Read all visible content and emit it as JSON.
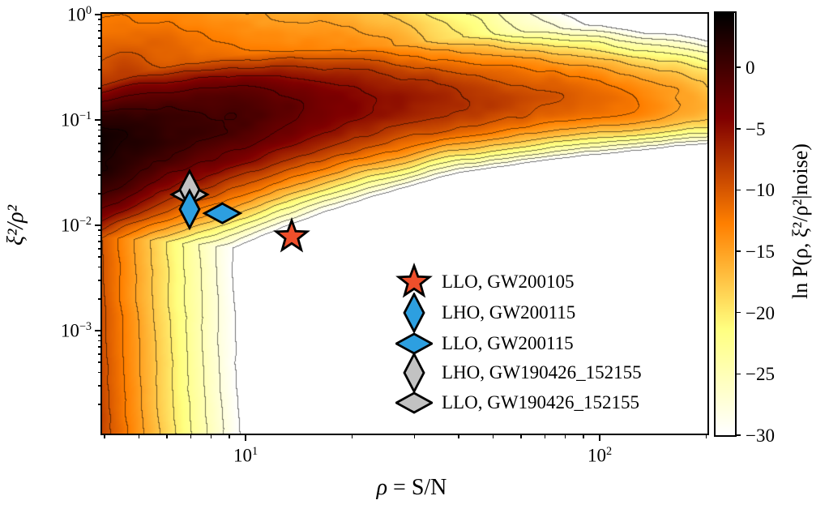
{
  "figure": {
    "xlabel": {
      "symbol": "ρ",
      "rest": " = S/N"
    },
    "ylabel": "ξ²/ρ²",
    "x_axis": {
      "scale": "log",
      "range": [
        3.92,
        202
      ],
      "major_ticks": [
        {
          "base": "10",
          "exp": "1",
          "value": 10
        },
        {
          "base": "10",
          "exp": "2",
          "value": 100
        }
      ],
      "minor_ticks": [
        4,
        5,
        6,
        7,
        8,
        9,
        20,
        30,
        40,
        50,
        60,
        70,
        80,
        90,
        200
      ]
    },
    "y_axis": {
      "scale": "log",
      "range": [
        0.000105,
        1.035
      ],
      "major_ticks": [
        {
          "base": "10",
          "exp": "0",
          "value": 1
        },
        {
          "base": "10",
          "exp": "−1",
          "value": 0.1
        },
        {
          "base": "10",
          "exp": "−2",
          "value": 0.01
        },
        {
          "base": "10",
          "exp": "−3",
          "value": 0.001
        }
      ],
      "minor_ticks": [
        0.9,
        0.8,
        0.7,
        0.6,
        0.5,
        0.4,
        0.3,
        0.2,
        0.09,
        0.08,
        0.07,
        0.06,
        0.05,
        0.04,
        0.03,
        0.02,
        0.009,
        0.008,
        0.007,
        0.006,
        0.005,
        0.004,
        0.003,
        0.002,
        0.0009,
        0.0008,
        0.0007,
        0.0006,
        0.0005,
        0.0004,
        0.0003,
        0.0002
      ]
    },
    "colorbar": {
      "label": "ln P(ρ, ξ²/ρ²|noise)",
      "vmin": -30,
      "vmax": 4.5,
      "colormap": "afmhot_r",
      "ticks": [
        {
          "label": "0",
          "value": 0
        },
        {
          "label": "−5",
          "value": -5
        },
        {
          "label": "−10",
          "value": -10
        },
        {
          "label": "−15",
          "value": -15
        },
        {
          "label": "−20",
          "value": -20
        },
        {
          "label": "−25",
          "value": -25
        },
        {
          "label": "−30",
          "value": -30
        }
      ]
    }
  },
  "legend": {
    "items": [
      {
        "label": "LLO, GW200105",
        "marker": "star",
        "color": "#EF4F2B"
      },
      {
        "label": "LHO, GW200115",
        "marker": "diamond-tall",
        "color": "#2D9FE0"
      },
      {
        "label": "LLO, GW200115",
        "marker": "diamond-wide",
        "color": "#2D9FE0"
      },
      {
        "label": "LHO, GW190426_152155",
        "marker": "diamond-tall",
        "color": "#C2C2C2"
      },
      {
        "label": "LLO, GW190426_152155",
        "marker": "diamond-wide",
        "color": "#C2C2C2"
      }
    ]
  },
  "chart_data": {
    "type": "heatmap",
    "subtype": "filled-contour-with-scatter",
    "title": "",
    "xlabel": "ρ = S/N",
    "ylabel": "ξ²/ρ²",
    "x_scale": "log",
    "y_scale": "log",
    "x_range": [
      3.92,
      202
    ],
    "y_range": [
      0.000105,
      1.035
    ],
    "colorbar_label": "ln P(ρ, ξ²/ρ²|noise)",
    "colorbar_range": [
      -30,
      4.5
    ],
    "colorbar_ticks": [
      0,
      -5,
      -10,
      -15,
      -20,
      -25,
      -30
    ],
    "colormap": "afmhot_r",
    "contour_level_step": 2.5,
    "density_peak": {
      "rho": 4.3,
      "xi2_over_rho2": 0.058,
      "ln_p": 3.4
    },
    "ridge_samples": [
      {
        "rho": 4.3,
        "xi2_over_rho2": 0.058,
        "ln_p": 3.4
      },
      {
        "rho": 10,
        "xi2_over_rho2": 0.12,
        "ln_p": -0.8
      },
      {
        "rho": 30,
        "xi2_over_rho2": 0.16,
        "ln_p": -6
      },
      {
        "rho": 100,
        "xi2_over_rho2": 0.15,
        "ln_p": -11
      },
      {
        "rho": 200,
        "xi2_over_rho2": 0.13,
        "ln_p": -15
      }
    ],
    "scatter_points": [
      {
        "detector": "LLO",
        "event": "GW200105",
        "label": "LLO, GW200105",
        "marker": "star",
        "color": "#EF4F2B",
        "rho": 13.5,
        "xi2_over_rho2": 0.0078
      },
      {
        "detector": "LHO",
        "event": "GW200115",
        "label": "LHO, GW200115",
        "marker": "diamond-tall",
        "color": "#2D9FE0",
        "rho": 6.95,
        "xi2_over_rho2": 0.0142
      },
      {
        "detector": "LLO",
        "event": "GW200115",
        "label": "LLO, GW200115",
        "marker": "diamond-wide",
        "color": "#2D9FE0",
        "rho": 8.6,
        "xi2_over_rho2": 0.013
      },
      {
        "detector": "LHO",
        "event": "GW190426_152155",
        "label": "LHO, GW190426_152155",
        "marker": "diamond-tall",
        "color": "#C2C2C2",
        "rho": 6.95,
        "xi2_over_rho2": 0.0218
      },
      {
        "detector": "LLO",
        "event": "GW190426_152155",
        "label": "LLO, GW190426_152155",
        "marker": "diamond-wide",
        "color": "#C2C2C2",
        "rho": 6.95,
        "xi2_over_rho2": 0.0196
      }
    ]
  }
}
